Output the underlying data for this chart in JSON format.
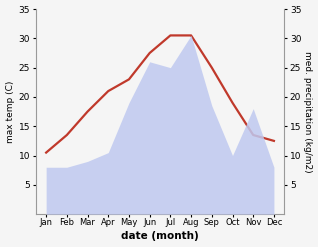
{
  "months": [
    "Jan",
    "Feb",
    "Mar",
    "Apr",
    "May",
    "Jun",
    "Jul",
    "Aug",
    "Sep",
    "Oct",
    "Nov",
    "Dec"
  ],
  "month_indices": [
    1,
    2,
    3,
    4,
    5,
    6,
    7,
    8,
    9,
    10,
    11,
    12
  ],
  "temperature": [
    10.5,
    13.5,
    17.5,
    21.0,
    23.0,
    27.5,
    30.5,
    30.5,
    25.0,
    19.0,
    13.5,
    12.5
  ],
  "precipitation": [
    8.0,
    8.0,
    9.0,
    10.5,
    19.0,
    26.0,
    25.0,
    30.5,
    18.5,
    10.0,
    18.0,
    8.0
  ],
  "temp_color": "#c0392b",
  "precip_fill_color": "#bfc9f0",
  "precip_fill_alpha": 0.85,
  "ylabel_left": "max temp (C)",
  "ylabel_right": "med. precipitation (kg/m2)",
  "xlabel": "date (month)",
  "ylim_left": [
    0,
    35
  ],
  "ylim_right": [
    0,
    35
  ],
  "yticks_left": [
    5,
    10,
    15,
    20,
    25,
    30,
    35
  ],
  "yticks_right": [
    5,
    10,
    15,
    20,
    25,
    30,
    35
  ],
  "temp_linewidth": 1.6,
  "bg_color": "#f5f5f5",
  "spine_color": "#999999"
}
